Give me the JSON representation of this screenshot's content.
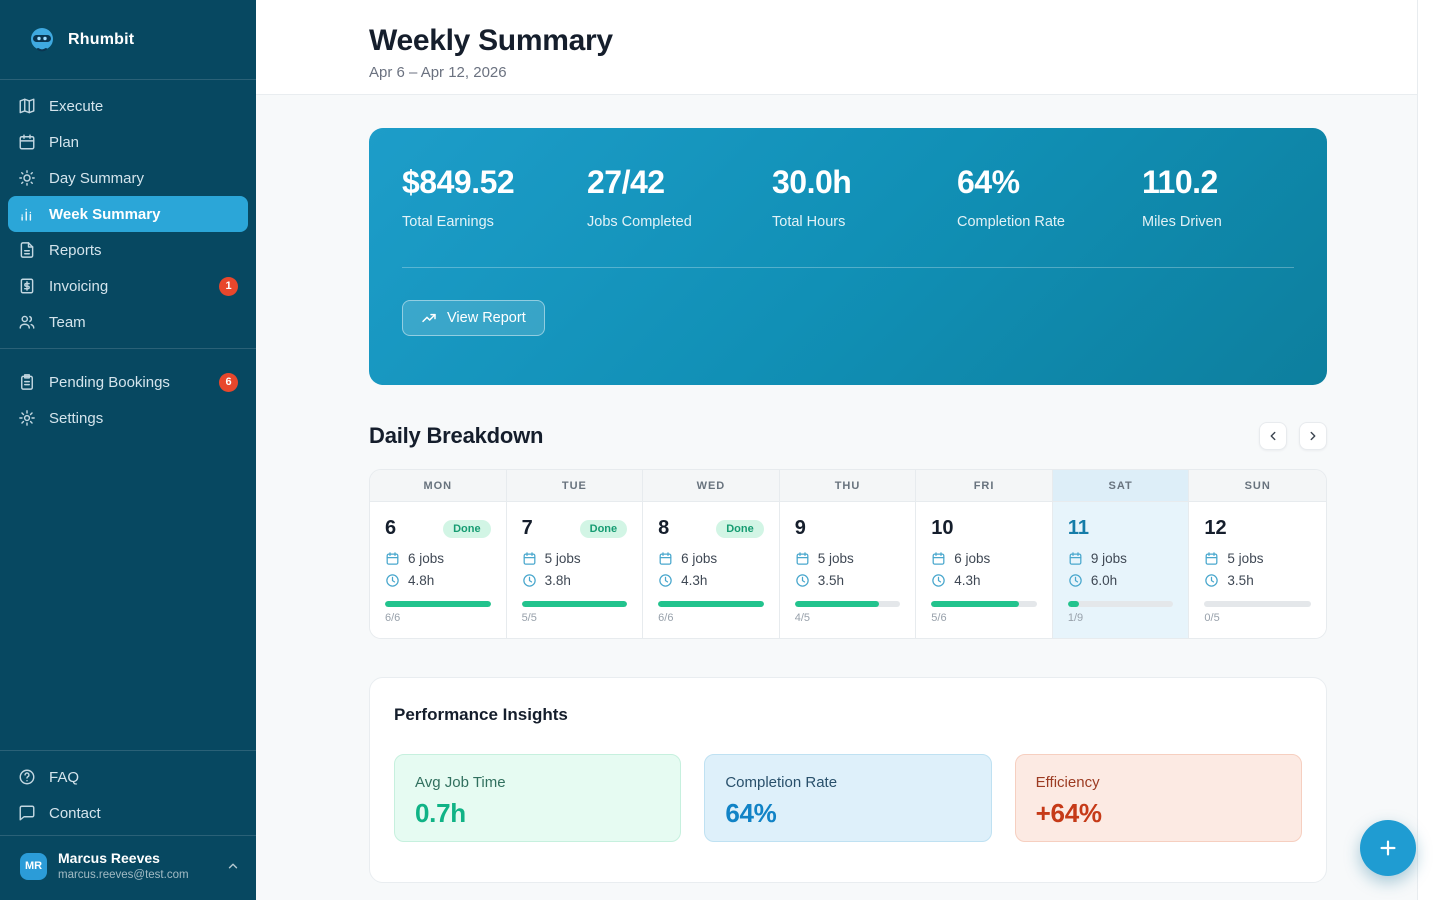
{
  "app": {
    "name": "Rhumbit"
  },
  "sidebar": {
    "nav": [
      {
        "label": "Execute",
        "icon": "map-icon"
      },
      {
        "label": "Plan",
        "icon": "calendar-icon"
      },
      {
        "label": "Day Summary",
        "icon": "sun-icon"
      },
      {
        "label": "Week Summary",
        "icon": "bar-chart-icon",
        "active": true
      },
      {
        "label": "Reports",
        "icon": "document-icon"
      },
      {
        "label": "Invoicing",
        "icon": "invoice-icon",
        "badge": "1"
      },
      {
        "label": "Team",
        "icon": "users-icon"
      }
    ],
    "secondary": [
      {
        "label": "Pending Bookings",
        "icon": "clipboard-icon",
        "badge": "6"
      },
      {
        "label": "Settings",
        "icon": "gear-icon"
      }
    ],
    "footer": [
      {
        "label": "FAQ",
        "icon": "help-icon"
      },
      {
        "label": "Contact",
        "icon": "chat-icon"
      }
    ],
    "user": {
      "initials": "MR",
      "name": "Marcus Reeves",
      "email": "marcus.reeves@test.com"
    }
  },
  "header": {
    "title": "Weekly Summary",
    "date_range": "Apr 6 – Apr 12, 2026"
  },
  "hero": {
    "stats": [
      {
        "value": "$849.52",
        "label": "Total Earnings"
      },
      {
        "value": "27/42",
        "label": "Jobs Completed"
      },
      {
        "value": "30.0h",
        "label": "Total Hours"
      },
      {
        "value": "64%",
        "label": "Completion Rate"
      },
      {
        "value": "110.2",
        "label": "Miles Driven"
      }
    ],
    "button_label": "View Report"
  },
  "daily_breakdown": {
    "title": "Daily Breakdown",
    "days": [
      {
        "dow": "MON",
        "date": "6",
        "badge": "Done",
        "jobs": "6 jobs",
        "hours": "4.8h",
        "fraction": "6/6",
        "progress": 100,
        "today": false
      },
      {
        "dow": "TUE",
        "date": "7",
        "badge": "Done",
        "jobs": "5 jobs",
        "hours": "3.8h",
        "fraction": "5/5",
        "progress": 100,
        "today": false
      },
      {
        "dow": "WED",
        "date": "8",
        "badge": "Done",
        "jobs": "6 jobs",
        "hours": "4.3h",
        "fraction": "6/6",
        "progress": 100,
        "today": false
      },
      {
        "dow": "THU",
        "date": "9",
        "badge": null,
        "jobs": "5 jobs",
        "hours": "3.5h",
        "fraction": "4/5",
        "progress": 80,
        "today": false
      },
      {
        "dow": "FRI",
        "date": "10",
        "badge": null,
        "jobs": "6 jobs",
        "hours": "4.3h",
        "fraction": "5/6",
        "progress": 83,
        "today": false
      },
      {
        "dow": "SAT",
        "date": "11",
        "badge": null,
        "jobs": "9 jobs",
        "hours": "6.0h",
        "fraction": "1/9",
        "progress": 11,
        "today": true
      },
      {
        "dow": "SUN",
        "date": "12",
        "badge": null,
        "jobs": "5 jobs",
        "hours": "3.5h",
        "fraction": "0/5",
        "progress": 0,
        "today": false
      }
    ]
  },
  "insights": {
    "title": "Performance Insights",
    "cards": [
      {
        "label": "Avg Job Time",
        "value": "0.7h",
        "theme": "green"
      },
      {
        "label": "Completion Rate",
        "value": "64%",
        "theme": "blue"
      },
      {
        "label": "Efficiency",
        "value": "+64%",
        "theme": "orange"
      }
    ]
  },
  "fab": {
    "label": "+"
  },
  "colors": {
    "sidebar_bg": "#074861",
    "active_nav": "#2ba6d8",
    "badge_red": "#e8472c",
    "hero_gradient_start": "#1d9dc9",
    "hero_gradient_end": "#0d7f9e",
    "progress_green": "#22c38d",
    "done_badge_bg": "#d2f5e5",
    "done_badge_text": "#169c72",
    "today_highlight": "#e7f4fb",
    "fab_blue": "#1f9cd2",
    "themes": {
      "green": {
        "bg": "#e6fbf2",
        "border": "#c6f0de",
        "label": "#31705f",
        "value": "#10b386"
      },
      "blue": {
        "bg": "#def0fa",
        "border": "#bfe1f2",
        "label": "#29506b",
        "value": "#1183c6"
      },
      "orange": {
        "bg": "#fceae3",
        "border": "#f6cfc0",
        "label": "#9c3b22",
        "value": "#c63a18"
      }
    }
  }
}
